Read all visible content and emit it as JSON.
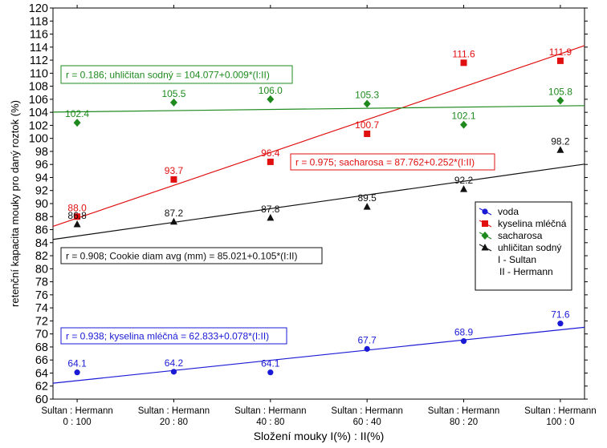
{
  "chart_data": {
    "type": "scatter",
    "title": "",
    "xlabel": "Složení mouky I(%) : II(%)",
    "ylabel": "retenční kapacita mouky pro daný roztok (%)",
    "ylim": [
      60,
      120
    ],
    "ytick_step": 2,
    "categories": [
      [
        "Sultan : Hermann",
        "0 : 100"
      ],
      [
        "Sultan : Hermann",
        "20 : 80"
      ],
      [
        "Sultan : Hermann",
        "40 : 80"
      ],
      [
        "Sultan : Hermann",
        "60 : 40"
      ],
      [
        "Sultan : Hermann",
        "80 : 20"
      ],
      [
        "Sultan : Hermann",
        "100 : 0"
      ]
    ],
    "x": [
      0,
      20,
      40,
      60,
      80,
      100
    ],
    "grid": false,
    "legend_position": "right",
    "legend_extra": [
      "I - Sultan",
      "II - Hermann"
    ],
    "series": [
      {
        "name": "voda",
        "color": "#1a1ad6",
        "marker": "circle",
        "values": [
          64.1,
          64.2,
          64.1,
          67.7,
          68.9,
          71.6
        ],
        "value_labels": [
          "64.1",
          "64.2",
          "64.1",
          "67.7",
          "68.9",
          "71.6"
        ],
        "fit": {
          "intercept": 62.833,
          "slope": 0.078
        },
        "fit_text": "r = 0.938; kyselina mléčná = 62.833+0.078*(I:II)"
      },
      {
        "name": "kyselina mléčná",
        "color": "#e01010",
        "marker": "square",
        "values": [
          88.0,
          93.7,
          96.4,
          100.7,
          111.6,
          111.9
        ],
        "value_labels": [
          "88.0",
          "93.7",
          "96.4",
          "100.7",
          "111.6",
          "111.9"
        ],
        "fit": {
          "intercept": 87.762,
          "slope": 0.252
        },
        "fit_text": "r = 0.975; sacharosa = 87.762+0.252*(I:II)"
      },
      {
        "name": "sacharosa",
        "color": "#1e8a1e",
        "marker": "diamond",
        "values": [
          102.4,
          105.5,
          106.0,
          105.3,
          102.1,
          105.8
        ],
        "value_labels": [
          "102.4",
          "105.5",
          "106.0",
          "105.3",
          "102.1",
          "105.8"
        ],
        "fit": {
          "intercept": 104.077,
          "slope": 0.009
        },
        "fit_text": "r = 0.186; uhličitan sodný = 104.077+0.009*(I:II)"
      },
      {
        "name": "uhličitan sodný",
        "color": "#111111",
        "marker": "triangle",
        "values": [
          86.8,
          87.2,
          87.8,
          89.5,
          92.2,
          98.2
        ],
        "value_labels": [
          "86.8",
          "87.2",
          "87.8",
          "89.5",
          "92.2",
          "98.2"
        ],
        "fit": {
          "intercept": 85.021,
          "slope": 0.105
        },
        "fit_text": "r = 0.908; Cookie diam avg (mm) = 85.021+0.105*(I:II)"
      }
    ]
  }
}
